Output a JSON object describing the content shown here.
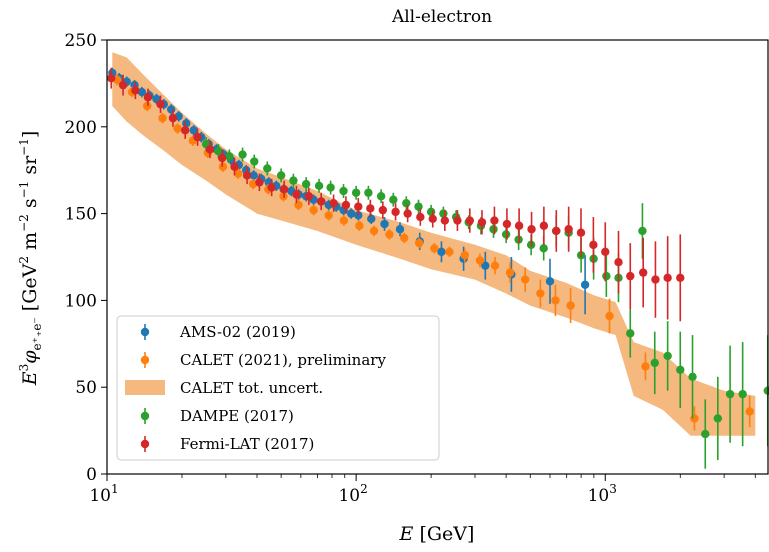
{
  "chart_data": {
    "type": "scatter",
    "title": "All-electron",
    "xlabel": "E [GeV]",
    "ylabel": "E³φe⁺₊e⁻ [GeV² m⁻² s⁻¹ sr⁻¹]",
    "xscale": "log",
    "xlim": [
      10,
      4500
    ],
    "ylim": [
      0,
      250
    ],
    "x_ticks": [
      {
        "value": 10,
        "label": "10",
        "exp": "1"
      },
      {
        "value": 100,
        "label": "10",
        "exp": "2"
      },
      {
        "value": 1000,
        "label": "10",
        "exp": "3"
      }
    ],
    "y_ticks": [
      "0",
      "50",
      "100",
      "150",
      "200",
      "250"
    ],
    "legend_position": "lower-left",
    "band": {
      "name": "CALET tot. uncert.",
      "color": "#f5b87e",
      "x": [
        10.5,
        12,
        14,
        17,
        20,
        25,
        30,
        40,
        50,
        70,
        100,
        150,
        200,
        300,
        400,
        500,
        700,
        900,
        1100,
        1300,
        1700,
        2200,
        3000,
        4000
      ],
      "lower": [
        212,
        203,
        195,
        186,
        178,
        169,
        161,
        150,
        146,
        140,
        132,
        124,
        118,
        112,
        104,
        97,
        90,
        84,
        80,
        45,
        37,
        22,
        22,
        22
      ],
      "upper": [
        243,
        240,
        230,
        218,
        208,
        196,
        187,
        176,
        171,
        163,
        152,
        145,
        139,
        132,
        126,
        117,
        110,
        103,
        99,
        76,
        70,
        55,
        48,
        45
      ]
    },
    "series": [
      {
        "name": "AMS-02 (2019)",
        "color": "#1f77b4",
        "x": [
          10.5,
          11.2,
          12.0,
          12.9,
          13.8,
          14.8,
          15.8,
          16.9,
          18.1,
          19.4,
          20.8,
          22.3,
          23.9,
          25.6,
          27.5,
          29.4,
          31.5,
          33.8,
          36.2,
          38.8,
          41.6,
          44.6,
          47.8,
          51.2,
          54.9,
          58.8,
          63.0,
          67.5,
          72.4,
          77.6,
          83.2,
          89.1,
          95.5,
          102,
          115,
          130,
          150,
          180,
          220,
          270,
          330,
          420,
          600,
          830
        ],
        "y": [
          231,
          228,
          226,
          224,
          220,
          218,
          216,
          213,
          210,
          206,
          202,
          198,
          194,
          190,
          187,
          184,
          181,
          178,
          175,
          172,
          170,
          168,
          166,
          164,
          163,
          161,
          160,
          158,
          157,
          155,
          154,
          152,
          150,
          149,
          147,
          144,
          141,
          134,
          128,
          124,
          120,
          115,
          111,
          109
        ],
        "err": [
          3,
          3,
          3,
          3,
          3,
          3,
          3,
          3,
          3,
          3,
          3,
          3,
          3,
          3,
          3,
          3,
          3,
          3,
          3,
          3,
          3,
          3,
          3,
          3,
          3,
          3,
          3,
          3,
          3,
          3,
          3,
          3,
          3,
          3,
          3,
          4,
          4,
          5,
          6,
          7,
          8,
          10,
          13,
          17
        ]
      },
      {
        "name": "CALET (2021), preliminary",
        "color": "#ff7f0e",
        "x": [
          11.0,
          12.6,
          14.5,
          16.7,
          19.2,
          22.1,
          25.4,
          29.2,
          33.6,
          38.6,
          44.4,
          51.1,
          58.7,
          67.5,
          77.6,
          89.3,
          103,
          118,
          136,
          156,
          179,
          206,
          237,
          273,
          314,
          361,
          415,
          477,
          549,
          631,
          726,
          1040,
          1450,
          2280,
          3800
        ],
        "y": [
          227,
          220,
          212,
          205,
          199,
          192,
          185,
          177,
          173,
          167,
          164,
          160,
          155,
          152,
          149,
          146,
          143,
          140,
          138,
          136,
          133,
          130,
          128,
          126,
          123,
          120,
          116,
          112,
          104,
          100,
          97,
          91,
          62,
          32,
          36
        ],
        "err": [
          3,
          3,
          3,
          3,
          3,
          3,
          3,
          3,
          3,
          3,
          3,
          3,
          3,
          3,
          3,
          3,
          3,
          3,
          3,
          3,
          3,
          3,
          3,
          4,
          4,
          5,
          6,
          7,
          8,
          9,
          10,
          10,
          8,
          7,
          9
        ]
      },
      {
        "name": "DAMPE (2017)",
        "color": "#2ca02c",
        "x": [
          25,
          28,
          31,
          35,
          39,
          44,
          50,
          56,
          63,
          71,
          79,
          89,
          100,
          112,
          126,
          141,
          159,
          178,
          200,
          224,
          252,
          283,
          317,
          356,
          400,
          449,
          504,
          566,
          635,
          713,
          800,
          898,
          1010,
          1130,
          1410,
          1260,
          1580,
          1780,
          2000,
          2240,
          2520,
          2830,
          3170,
          3560,
          4490
        ],
        "y": [
          190,
          186,
          183,
          184,
          180,
          176,
          172,
          169,
          167,
          166,
          165,
          163,
          162,
          162,
          160,
          158,
          156,
          154,
          151,
          150,
          148,
          145,
          143,
          141,
          138,
          135,
          132,
          130,
          140,
          139,
          126,
          124,
          114,
          113,
          140,
          81,
          64,
          68,
          60,
          56,
          23,
          32,
          46,
          46,
          48
        ],
        "err": [
          4,
          4,
          4,
          4,
          4,
          4,
          4,
          4,
          4,
          4,
          4,
          4,
          4,
          4,
          4,
          4,
          4,
          4,
          4,
          4,
          4,
          4,
          5,
          5,
          5,
          6,
          6,
          7,
          9,
          10,
          10,
          12,
          12,
          14,
          16,
          14,
          18,
          20,
          22,
          24,
          20,
          24,
          28,
          30,
          32
        ]
      },
      {
        "name": "Fermi-LAT (2017)",
        "color": "#d62728",
        "x": [
          10.4,
          11.6,
          13.0,
          14.6,
          16.4,
          18.4,
          20.6,
          23.1,
          25.9,
          29.0,
          32.5,
          36.5,
          40.9,
          45.8,
          51.4,
          57.6,
          64.6,
          72.4,
          81.2,
          91.0,
          102,
          114,
          128,
          144,
          161,
          181,
          203,
          227,
          255,
          286,
          320,
          359,
          403,
          451,
          506,
          567,
          636,
          713,
          799,
          896,
          1000,
          1130,
          1260,
          1420,
          1590,
          1780,
          2000
        ],
        "y": [
          228,
          224,
          221,
          217,
          213,
          205,
          198,
          194,
          187,
          182,
          177,
          172,
          168,
          165,
          164,
          161,
          160,
          157,
          156,
          155,
          154,
          153,
          152,
          151,
          150,
          148,
          147,
          146,
          146,
          146,
          145,
          146,
          144,
          143,
          141,
          143,
          140,
          141,
          139,
          132,
          128,
          122,
          114,
          116,
          112,
          113,
          113
        ],
        "err": [
          6,
          6,
          5,
          5,
          5,
          5,
          5,
          5,
          5,
          5,
          5,
          5,
          5,
          5,
          5,
          5,
          5,
          5,
          5,
          5,
          5,
          5,
          5,
          5,
          5,
          5,
          5,
          6,
          6,
          7,
          7,
          8,
          9,
          10,
          10,
          11,
          12,
          13,
          14,
          16,
          17,
          18,
          19,
          20,
          22,
          24,
          25
        ]
      }
    ]
  }
}
